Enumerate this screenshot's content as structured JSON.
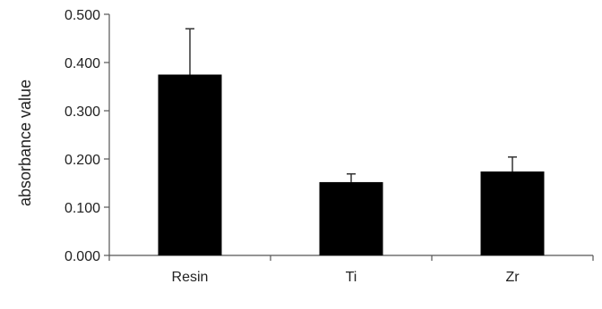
{
  "chart_data": {
    "type": "bar",
    "title": "",
    "xlabel": "",
    "ylabel": "absorbance value",
    "categories": [
      "Resin",
      "Ti",
      "Zr"
    ],
    "series": [
      {
        "values": [
          0.375,
          0.152,
          0.174
        ],
        "error_plus": [
          0.095,
          0.017,
          0.03
        ]
      }
    ],
    "ylim": [
      0,
      0.5
    ],
    "yticks": [
      "0.000",
      "0.100",
      "0.200",
      "0.300",
      "0.400",
      "0.500"
    ],
    "grid": false,
    "legend": "none",
    "colors": {
      "bar": "#000000",
      "axis": "#555555",
      "error_bar": "#333333"
    }
  }
}
